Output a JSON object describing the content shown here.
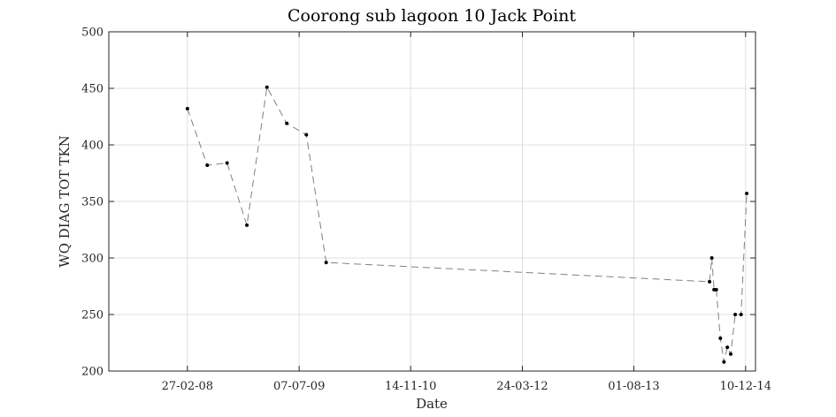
{
  "chart_data": {
    "type": "line",
    "title": "Coorong sub lagoon 10 Jack Point",
    "xlabel": "Date",
    "ylabel": "WQ DIAG TOT TKN",
    "ylim": [
      200,
      500
    ],
    "xlim": [
      "2007-03-15",
      "2015-01-23"
    ],
    "grid": true,
    "y_ticks": [
      "200",
      "250",
      "300",
      "350",
      "400",
      "450",
      "500"
    ],
    "x_ticks": [
      {
        "date": "2008-02-27",
        "label": "27-02-08"
      },
      {
        "date": "2009-07-07",
        "label": "07-07-09"
      },
      {
        "date": "2010-11-14",
        "label": "14-11-10"
      },
      {
        "date": "2012-03-24",
        "label": "24-03-12"
      },
      {
        "date": "2013-08-01",
        "label": "01-08-13"
      },
      {
        "date": "2014-12-10",
        "label": "10-12-14"
      }
    ],
    "series": [
      {
        "color": "#808080",
        "line_style": "dashed",
        "marker": "dot",
        "marker_color": "#000000",
        "x": [
          "2008-02-27",
          "2008-05-25",
          "2008-08-21",
          "2008-11-17",
          "2009-02-14",
          "2009-05-13",
          "2009-08-08",
          "2009-11-04",
          "2014-07-03",
          "2014-07-13",
          "2014-07-23",
          "2014-08-02",
          "2014-08-20",
          "2014-09-05",
          "2014-09-20",
          "2014-10-05",
          "2014-10-25",
          "2014-11-20",
          "2014-12-15"
        ],
        "values": [
          432,
          382,
          384,
          329,
          451,
          419,
          409,
          296,
          279,
          300,
          272,
          272,
          229,
          208,
          221,
          215,
          250,
          250,
          357
        ]
      }
    ]
  }
}
